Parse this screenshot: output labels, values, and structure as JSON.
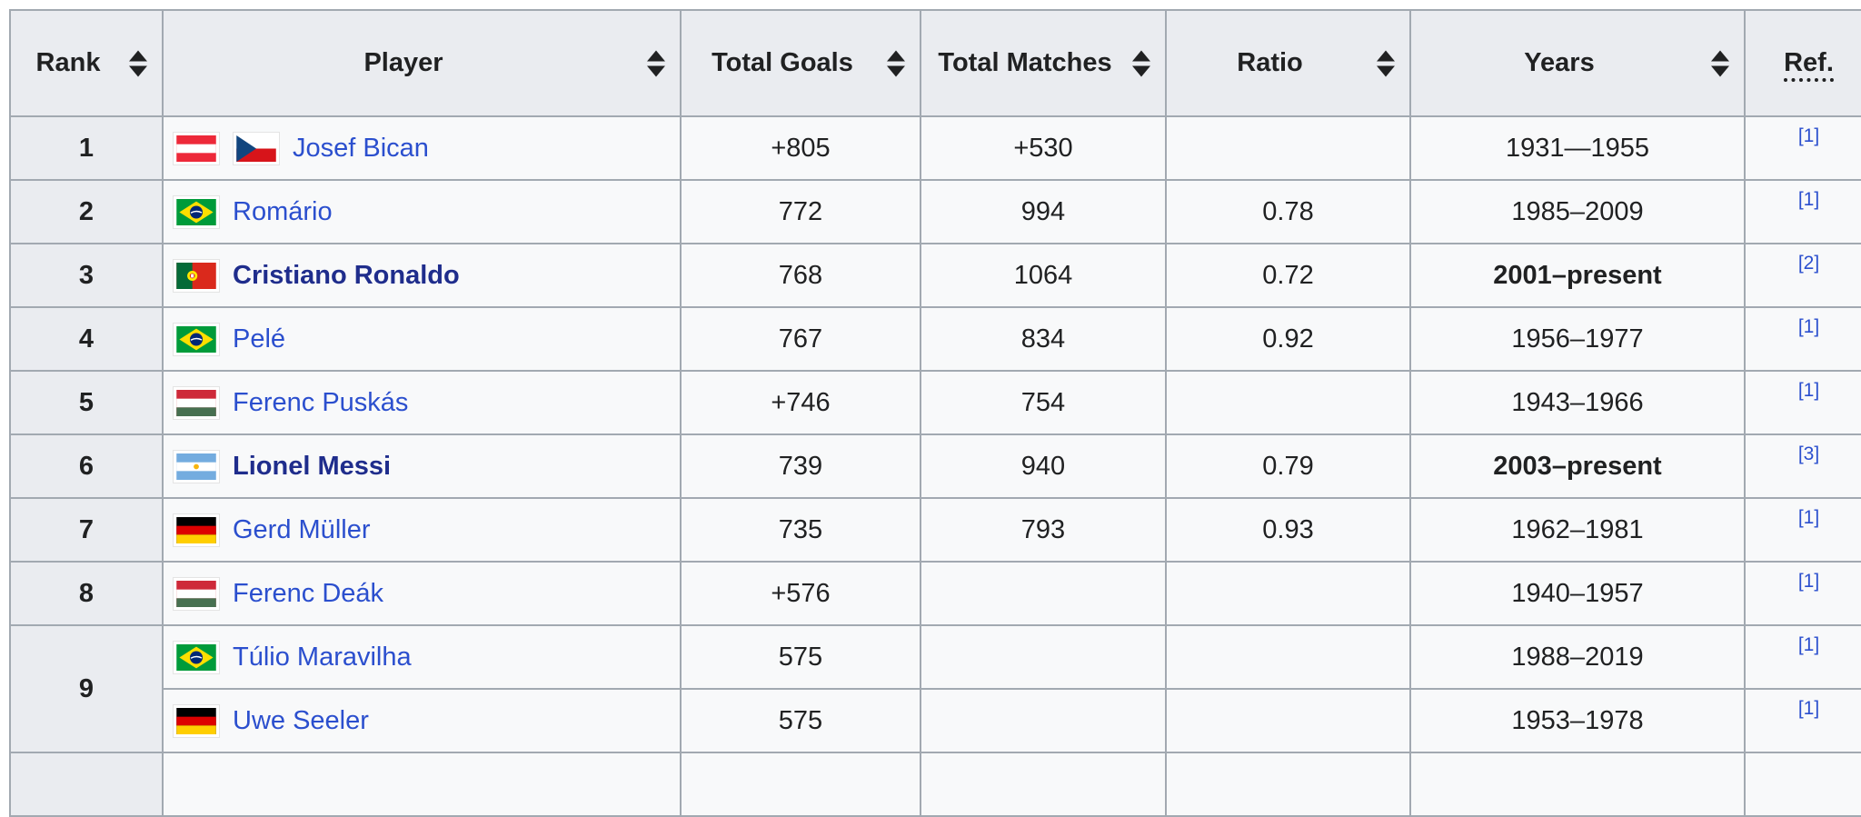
{
  "colors": {
    "header_bg": "#eaecf0",
    "cell_bg": "#f8f9fa",
    "border": "#a2a9b1",
    "text": "#202122",
    "link": "#2b4fce",
    "link_bold": "#1f2d8c",
    "ref_link": "#2b4fce"
  },
  "icons": {
    "sort": "sort-icon (stacked up/down triangles)",
    "flags_used": [
      "austria",
      "czech-republic",
      "brazil",
      "portugal",
      "hungary",
      "argentina",
      "germany"
    ]
  },
  "table": {
    "columns": [
      {
        "label": "Rank",
        "sortable": true
      },
      {
        "label": "Player",
        "sortable": true
      },
      {
        "label": "Total Goals",
        "sortable": true
      },
      {
        "label": "Total Matches",
        "sortable": true
      },
      {
        "label": "Ratio",
        "sortable": true
      },
      {
        "label": "Years",
        "sortable": true
      },
      {
        "label": "Ref.",
        "sortable": false,
        "abbr": true
      }
    ],
    "rows": [
      {
        "rank": "1",
        "rank_rowspan": 1,
        "flags": [
          "austria",
          "czech-republic"
        ],
        "player": "Josef Bican",
        "bold": false,
        "goals": "+805",
        "matches": "+530",
        "ratio": "",
        "years": "1931—1955",
        "years_bold": false,
        "ref": "[1]"
      },
      {
        "rank": "2",
        "rank_rowspan": 1,
        "flags": [
          "brazil"
        ],
        "player": "Romário",
        "bold": false,
        "goals": "772",
        "matches": "994",
        "ratio": "0.78",
        "years": "1985–2009",
        "years_bold": false,
        "ref": "[1]"
      },
      {
        "rank": "3",
        "rank_rowspan": 1,
        "flags": [
          "portugal"
        ],
        "player": "Cristiano Ronaldo",
        "bold": true,
        "goals": "768",
        "matches": "1064",
        "ratio": "0.72",
        "years": "2001–present",
        "years_bold": true,
        "ref": "[2]"
      },
      {
        "rank": "4",
        "rank_rowspan": 1,
        "flags": [
          "brazil"
        ],
        "player": "Pelé",
        "bold": false,
        "goals": "767",
        "matches": "834",
        "ratio": "0.92",
        "years": "1956–1977",
        "years_bold": false,
        "ref": "[1]"
      },
      {
        "rank": "5",
        "rank_rowspan": 1,
        "flags": [
          "hungary"
        ],
        "player": "Ferenc Puskás",
        "bold": false,
        "goals": "+746",
        "matches": "754",
        "ratio": "",
        "years": "1943–1966",
        "years_bold": false,
        "ref": "[1]"
      },
      {
        "rank": "6",
        "rank_rowspan": 1,
        "flags": [
          "argentina"
        ],
        "player": "Lionel Messi",
        "bold": true,
        "goals": "739",
        "matches": "940",
        "ratio": "0.79",
        "years": "2003–present",
        "years_bold": true,
        "ref": "[3]"
      },
      {
        "rank": "7",
        "rank_rowspan": 1,
        "flags": [
          "germany"
        ],
        "player": "Gerd Müller",
        "bold": false,
        "goals": "735",
        "matches": "793",
        "ratio": "0.93",
        "years": "1962–1981",
        "years_bold": false,
        "ref": "[1]"
      },
      {
        "rank": "8",
        "rank_rowspan": 1,
        "flags": [
          "hungary"
        ],
        "player": "Ferenc Deák",
        "bold": false,
        "goals": "+576",
        "matches": "",
        "ratio": "",
        "years": "1940–1957",
        "years_bold": false,
        "ref": "[1]"
      },
      {
        "rank": "9",
        "rank_rowspan": 2,
        "flags": [
          "brazil"
        ],
        "player": "Túlio Maravilha",
        "bold": false,
        "goals": "575",
        "matches": "",
        "ratio": "",
        "years": "1988–2019",
        "years_bold": false,
        "ref": "[1]"
      },
      {
        "rank": null,
        "flags": [
          "germany"
        ],
        "player": "Uwe Seeler",
        "bold": false,
        "goals": "575",
        "matches": "",
        "ratio": "",
        "years": "1953–1978",
        "years_bold": false,
        "ref": "[1]"
      },
      {
        "rank": "",
        "rank_rowspan": 1,
        "partial": true,
        "flags": [],
        "player": "",
        "bold": false,
        "goals": "",
        "matches": "",
        "ratio": "",
        "years": "",
        "years_bold": false,
        "ref": ""
      }
    ]
  }
}
